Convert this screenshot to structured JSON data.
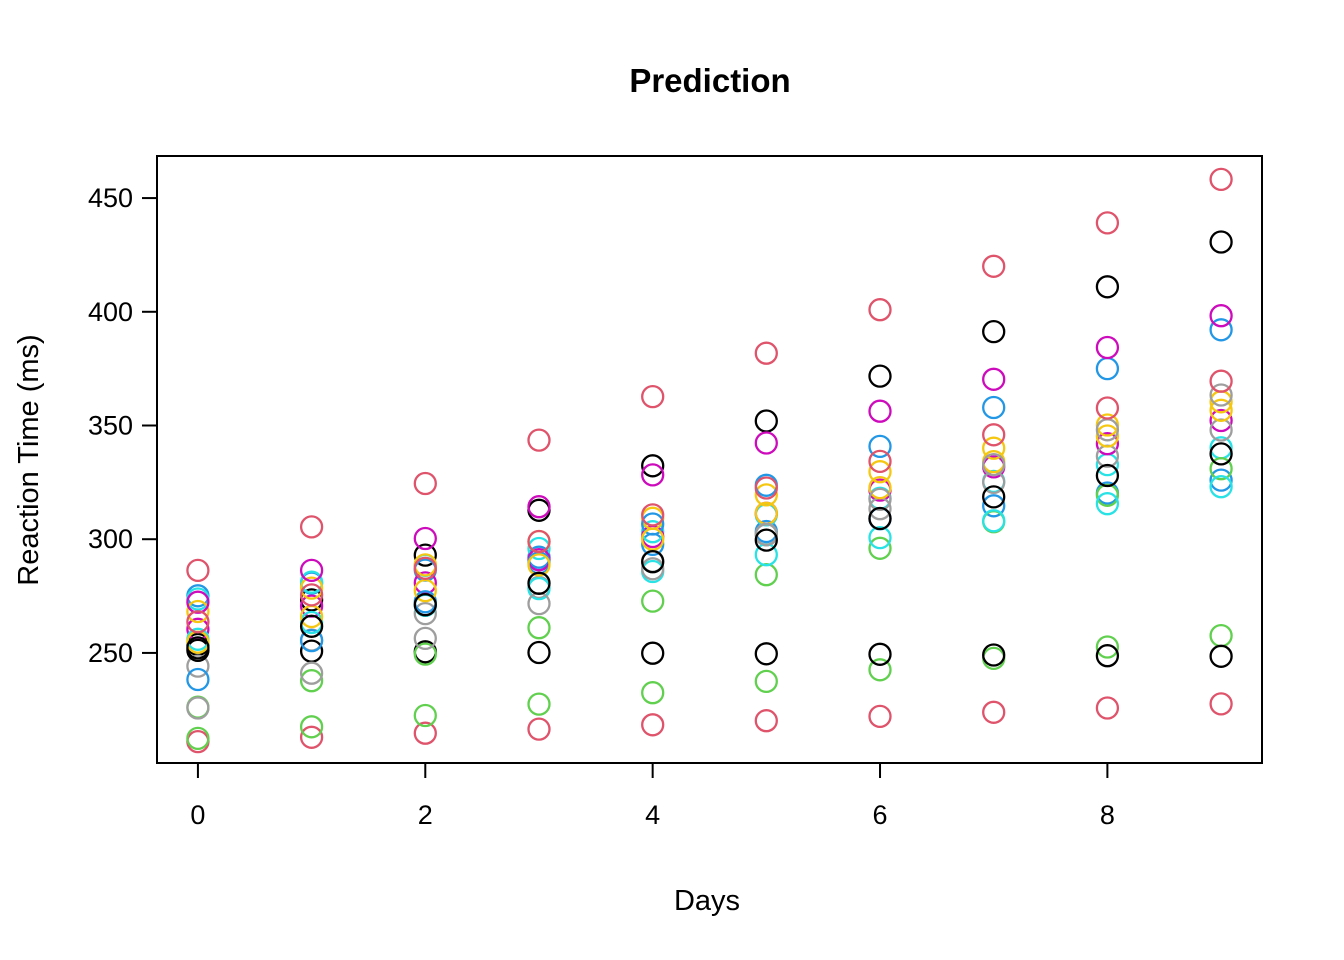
{
  "title": "Prediction",
  "x_axis": {
    "label": "Days",
    "tick_labels": [
      "0",
      "2",
      "4",
      "6",
      "8"
    ]
  },
  "y_axis": {
    "label": "Reaction Time (ms)",
    "tick_labels": [
      "250",
      "300",
      "350",
      "400",
      "450"
    ]
  },
  "chart_data": {
    "type": "scatter",
    "title": "Prediction",
    "xlabel": "Days",
    "ylabel": "Reaction Time (ms)",
    "x": [
      0,
      1,
      2,
      3,
      4,
      5,
      6,
      7,
      8,
      9
    ],
    "x_ticks": [
      0,
      2,
      4,
      6,
      8
    ],
    "y_ticks": [
      250,
      300,
      350,
      400,
      450
    ],
    "xlim": [
      -0.36,
      9.36
    ],
    "ylim": [
      201.6,
      468.5
    ],
    "grid": false,
    "legend": "none",
    "marker": "open-circle",
    "background": "#ffffff",
    "axis_color": "#000000",
    "series": [
      {
        "color": "#000000",
        "values": [
          253.7,
          273.3,
          293.0,
          312.7,
          332.3,
          352.0,
          371.7,
          391.3,
          411.0,
          430.7
        ]
      },
      {
        "color": "#DF536B",
        "values": [
          211.0,
          212.9,
          214.7,
          216.5,
          218.4,
          220.2,
          222.1,
          223.9,
          225.8,
          227.6
        ]
      },
      {
        "color": "#61D04F",
        "values": [
          212.4,
          217.5,
          222.5,
          227.5,
          232.5,
          237.5,
          242.6,
          247.6,
          252.6,
          257.6
        ]
      },
      {
        "color": "#2297E6",
        "values": [
          275.1,
          280.7,
          286.4,
          292.1,
          297.7,
          303.4,
          309.0,
          314.7,
          320.3,
          326.0
        ]
      },
      {
        "color": "#28E2E5",
        "values": [
          273.7,
          281.1,
          288.5,
          295.9,
          303.3,
          310.7,
          318.0,
          325.4,
          332.8,
          340.2
        ]
      },
      {
        "color": "#CD0BBC",
        "values": [
          260.4,
          270.6,
          280.8,
          291.0,
          301.2,
          311.4,
          321.6,
          331.8,
          342.0,
          352.2
        ]
      },
      {
        "color": "#F5C710",
        "values": [
          268.2,
          278.5,
          288.7,
          299.0,
          309.2,
          319.5,
          329.7,
          340.0,
          350.2,
          360.4
        ]
      },
      {
        "color": "#9E9E9E",
        "values": [
          244.2,
          255.7,
          267.3,
          278.8,
          290.3,
          301.9,
          313.4,
          325.0,
          336.5,
          348.0
        ]
      },
      {
        "color": "#000000",
        "values": [
          251.1,
          250.8,
          250.5,
          250.2,
          249.9,
          249.6,
          249.4,
          249.1,
          248.8,
          248.5
        ]
      },
      {
        "color": "#DF536B",
        "values": [
          286.3,
          305.4,
          324.5,
          343.6,
          362.7,
          381.8,
          400.9,
          420.0,
          439.1,
          458.2
        ]
      },
      {
        "color": "#61D04F",
        "values": [
          226.2,
          237.8,
          249.5,
          261.1,
          272.8,
          284.4,
          296.0,
          307.7,
          319.3,
          331.0
        ]
      },
      {
        "color": "#2297E6",
        "values": [
          238.3,
          255.4,
          272.5,
          289.6,
          306.7,
          323.7,
          340.8,
          357.9,
          375.0,
          392.1
        ]
      },
      {
        "color": "#28E2E5",
        "values": [
          256.0,
          263.4,
          270.9,
          278.3,
          285.8,
          293.2,
          300.7,
          308.1,
          315.6,
          323.1
        ]
      },
      {
        "color": "#CD0BBC",
        "values": [
          272.3,
          286.3,
          300.3,
          314.3,
          328.3,
          342.3,
          356.3,
          370.3,
          384.3,
          398.3
        ]
      },
      {
        "color": "#F5C710",
        "values": [
          254.7,
          266.0,
          277.4,
          288.7,
          300.0,
          311.4,
          322.7,
          334.1,
          345.4,
          356.7
        ]
      },
      {
        "color": "#9E9E9E",
        "values": [
          225.8,
          241.1,
          256.4,
          271.7,
          287.0,
          302.2,
          317.5,
          332.8,
          348.1,
          363.4
        ]
      },
      {
        "color": "#000000",
        "values": [
          252.2,
          261.7,
          271.2,
          280.6,
          290.1,
          299.6,
          309.1,
          318.6,
          328.0,
          337.5
        ]
      },
      {
        "color": "#DF536B",
        "values": [
          263.7,
          275.5,
          287.2,
          299.0,
          310.7,
          322.5,
          334.2,
          345.9,
          357.7,
          369.5
        ]
      }
    ]
  }
}
